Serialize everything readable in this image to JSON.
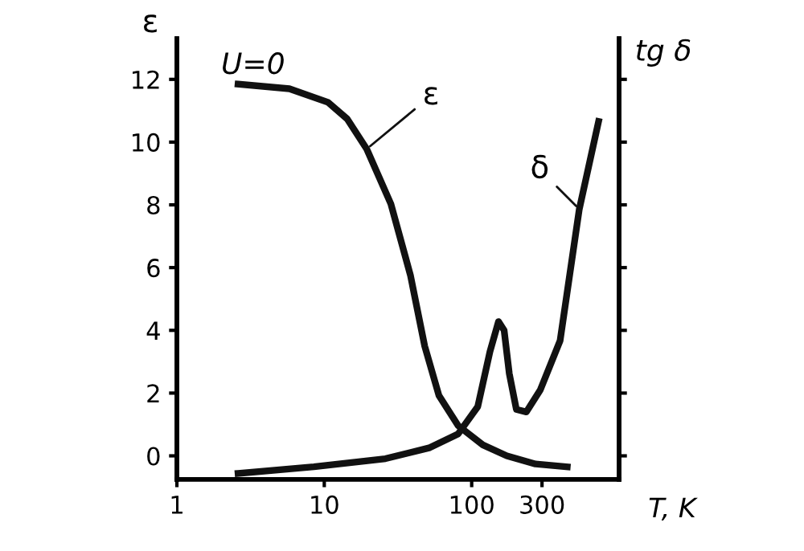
{
  "chart_data": {
    "type": "line",
    "xlabel": "T, K",
    "ylabel": "ε",
    "y2label": "tg δ",
    "log": "x",
    "grid": false,
    "legend": false,
    "marker": "none",
    "line_style": "solid",
    "annotations": [
      "U=0"
    ],
    "xlim": [
      1,
      1000
    ],
    "xticks": [
      1,
      10,
      100,
      300
    ],
    "ylim": [
      -0.75,
      13.3
    ],
    "yticks": [
      0,
      2,
      4,
      6,
      8,
      10,
      12
    ],
    "series": [
      {
        "name": "ε",
        "color": "#111111",
        "x": [
          2.6,
          5.8,
          10.6,
          14.3,
          19.4,
          28.3,
          38.4,
          48,
          60,
          81,
          119,
          173,
          271,
          445
        ],
        "values": [
          11.85,
          11.7,
          11.27,
          10.74,
          9.78,
          8.03,
          5.76,
          3.5,
          1.92,
          0.96,
          0.35,
          0,
          -0.26,
          -0.35
        ]
      },
      {
        "name": "δ",
        "color": "#111111",
        "x": [
          2.6,
          8.5,
          26,
          52,
          81,
          110,
          133,
          152,
          166,
          180,
          201,
          235,
          292,
          398,
          537,
          726
        ],
        "values": [
          -0.56,
          -0.35,
          -0.09,
          0.26,
          0.7,
          1.57,
          3.32,
          4.28,
          4.0,
          2.62,
          1.48,
          1.4,
          2.1,
          3.67,
          7.86,
          10.66
        ]
      }
    ]
  }
}
